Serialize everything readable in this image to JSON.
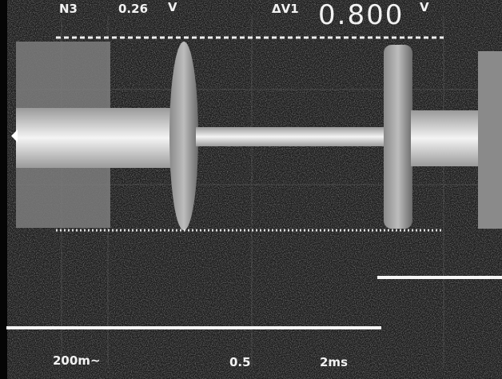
{
  "top_readout": {
    "channel": "N3",
    "value": "0.26",
    "unit": "V",
    "delta_label": "ΔV1",
    "delta_value": "0.800",
    "delta_unit": "V"
  },
  "bottom_readout": {
    "volts_per_div": "200m~",
    "position": "0.5",
    "time_per_div": "2ms"
  }
}
